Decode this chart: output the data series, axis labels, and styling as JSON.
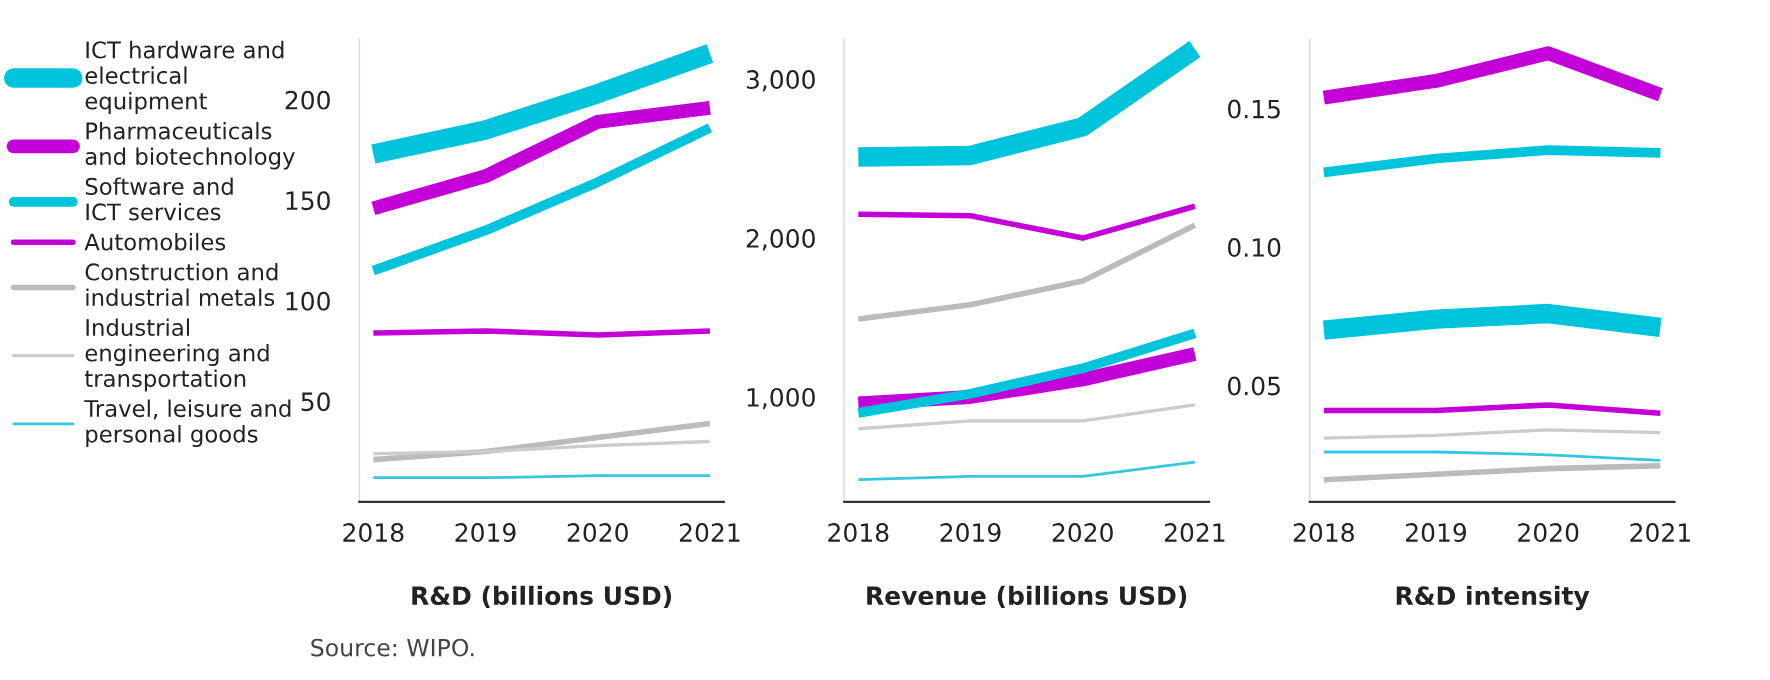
{
  "chart_data": [
    {
      "type": "line",
      "xlabel": "R&D (billions USD)",
      "categories": [
        "2018",
        "2019",
        "2020",
        "2021"
      ],
      "ylim": [
        0,
        230
      ],
      "yticks": [
        50,
        100,
        150,
        200
      ],
      "grid": false,
      "legend": "left",
      "line_style": "solid",
      "marker": "none",
      "annotations": [
        "Source: WIPO."
      ],
      "series": [
        {
          "name": "ICT hardware and\nelectrical\nequipment",
          "color": "#00c4dc",
          "values": [
            173,
            185,
            203,
            223
          ]
        },
        {
          "name": "Pharmaceuticals\nand biotechnology",
          "color": "#c400d8",
          "values": [
            146,
            162,
            189,
            196
          ]
        },
        {
          "name": "Software and\nICT services",
          "color": "#00c4dc",
          "values": [
            115,
            135,
            159,
            186
          ]
        },
        {
          "name": "Automobiles",
          "color": "#c400d8",
          "values": [
            84,
            85,
            83,
            85
          ]
        },
        {
          "name": "Construction and\nindustrial metals",
          "color": "#bbbbbb",
          "values": [
            21,
            25,
            32,
            39
          ]
        },
        {
          "name": "Industrial\nengineering and\ntransportation",
          "color": "#cccccc",
          "values": [
            24,
            25,
            28,
            30
          ]
        },
        {
          "name": "Travel, leisure and\npersonal goods",
          "color": "#33c8e0",
          "values": [
            12,
            12,
            13,
            13
          ]
        }
      ]
    },
    {
      "type": "line",
      "xlabel": "Revenue (billions USD)",
      "categories": [
        "2018",
        "2019",
        "2020",
        "2021"
      ],
      "ylim": [
        340,
        3250
      ],
      "yticks": [
        {
          "value": 1000,
          "label": "1,000"
        },
        {
          "value": 2000,
          "label": "2,000"
        },
        {
          "value": 3000,
          "label": "3,000"
        }
      ],
      "grid": false,
      "line_style": "solid",
      "marker": "none",
      "series": [
        {
          "name": "ICT hardware and\nelectrical\nequipment",
          "color": "#00c4dc",
          "values": [
            2510,
            2520,
            2700,
            3190
          ]
        },
        {
          "name": "Pharmaceuticals\nand biotechnology",
          "color": "#c400d8",
          "values": [
            960,
            1000,
            1110,
            1270
          ]
        },
        {
          "name": "Software and\nICT services",
          "color": "#00c4dc",
          "values": [
            900,
            1020,
            1180,
            1400
          ]
        },
        {
          "name": "Automobiles",
          "color": "#c400d8",
          "values": [
            2150,
            2140,
            2000,
            2200
          ]
        },
        {
          "name": "Construction and\nindustrial metals",
          "color": "#bbbbbb",
          "values": [
            1490,
            1580,
            1730,
            2080
          ]
        },
        {
          "name": "Industrial\nengineering and\ntransportation",
          "color": "#cccccc",
          "values": [
            800,
            850,
            850,
            950
          ]
        },
        {
          "name": "Travel, leisure and\npersonal goods",
          "color": "#33c8e0",
          "values": [
            480,
            500,
            500,
            590
          ]
        }
      ]
    },
    {
      "type": "line",
      "xlabel": "R&D intensity",
      "categories": [
        "2018",
        "2019",
        "2020",
        "2021"
      ],
      "ylim": [
        0.008,
        0.175
      ],
      "yticks": [
        {
          "value": 0.05,
          "label": "0.05"
        },
        {
          "value": 0.1,
          "label": "0.10"
        },
        {
          "value": 0.15,
          "label": "0.15"
        }
      ],
      "grid": false,
      "line_style": "solid",
      "marker": "none",
      "series": [
        {
          "name": "ICT hardware and\nelectrical\nequipment",
          "color": "#00c4dc",
          "values": [
            0.07,
            0.074,
            0.076,
            0.071
          ]
        },
        {
          "name": "Pharmaceuticals\nand biotechnology",
          "color": "#c400d8",
          "values": [
            0.154,
            0.16,
            0.17,
            0.155
          ]
        },
        {
          "name": "Software and\nICT services",
          "color": "#00c4dc",
          "values": [
            0.127,
            0.132,
            0.135,
            0.134
          ]
        },
        {
          "name": "Automobiles",
          "color": "#c400d8",
          "values": [
            0.041,
            0.041,
            0.043,
            0.04
          ]
        },
        {
          "name": "Construction and\nindustrial metals",
          "color": "#bbbbbb",
          "values": [
            0.016,
            0.018,
            0.02,
            0.021
          ]
        },
        {
          "name": "Industrial\nengineering and\ntransportation",
          "color": "#cccccc",
          "values": [
            0.031,
            0.032,
            0.034,
            0.033
          ]
        },
        {
          "name": "Travel, leisure and\npersonal goods",
          "color": "#33c8e0",
          "values": [
            0.026,
            0.026,
            0.025,
            0.023
          ]
        }
      ]
    }
  ]
}
